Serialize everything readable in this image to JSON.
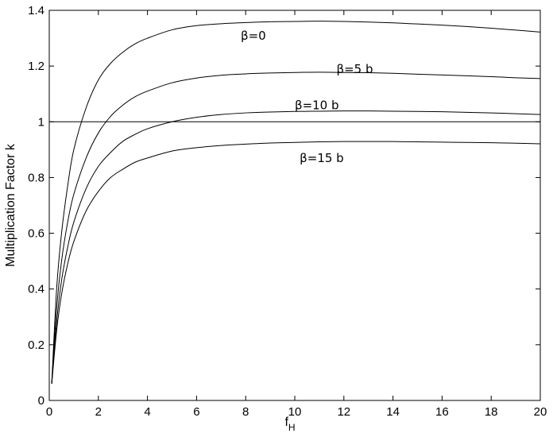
{
  "chart_data": {
    "type": "line",
    "title": "",
    "xlabel": "f",
    "xlabel_subscript": "H",
    "ylabel": "Multiplication Factor k",
    "xlim": [
      0,
      20
    ],
    "ylim": [
      0,
      1.4
    ],
    "xticks": [
      "0",
      "2",
      "4",
      "6",
      "8",
      "10",
      "12",
      "14",
      "16",
      "18",
      "20"
    ],
    "yticks": [
      "0",
      "0.2",
      "0.4",
      "0.6",
      "0.8",
      "1",
      "1.2",
      "1.4"
    ],
    "grid": false,
    "reference_line": {
      "y": 1
    },
    "x": [
      0.1,
      0.3,
      0.5,
      0.75,
      1,
      1.5,
      2,
      2.5,
      3,
      3.5,
      4,
      5,
      6,
      7,
      8,
      9,
      10,
      11,
      12,
      13,
      14,
      15,
      16,
      17,
      18,
      19,
      20
    ],
    "series": [
      {
        "name": "β=0",
        "values": [
          0.06,
          0.4,
          0.6,
          0.77,
          0.9,
          1.05,
          1.15,
          1.21,
          1.25,
          1.28,
          1.3,
          1.33,
          1.345,
          1.352,
          1.356,
          1.359,
          1.36,
          1.361,
          1.36,
          1.358,
          1.355,
          1.351,
          1.347,
          1.342,
          1.336,
          1.329,
          1.322
        ]
      },
      {
        "name": "β=5 b",
        "values": [
          0.06,
          0.33,
          0.5,
          0.64,
          0.74,
          0.87,
          0.96,
          1.02,
          1.06,
          1.09,
          1.11,
          1.14,
          1.157,
          1.167,
          1.172,
          1.175,
          1.177,
          1.178,
          1.177,
          1.176,
          1.174,
          1.171,
          1.168,
          1.165,
          1.162,
          1.158,
          1.155
        ]
      },
      {
        "name": "β=10 b",
        "values": [
          0.06,
          0.28,
          0.43,
          0.55,
          0.64,
          0.76,
          0.84,
          0.89,
          0.93,
          0.955,
          0.975,
          1.0,
          1.016,
          1.026,
          1.032,
          1.035,
          1.037,
          1.038,
          1.039,
          1.039,
          1.038,
          1.037,
          1.036,
          1.034,
          1.032,
          1.029,
          1.026
        ]
      },
      {
        "name": "β=15 b",
        "values": [
          0.06,
          0.25,
          0.38,
          0.49,
          0.57,
          0.68,
          0.75,
          0.8,
          0.83,
          0.855,
          0.87,
          0.895,
          0.907,
          0.915,
          0.92,
          0.924,
          0.926,
          0.928,
          0.929,
          0.929,
          0.929,
          0.928,
          0.927,
          0.926,
          0.925,
          0.923,
          0.921
        ]
      }
    ],
    "annotations": [
      {
        "text": "β=0",
        "x": 7.8,
        "y": 1.295
      },
      {
        "text": "β=5 b",
        "x": 11.7,
        "y": 1.175
      },
      {
        "text": "β=10 b",
        "x": 10.0,
        "y": 1.045
      },
      {
        "text": "β=15 b",
        "x": 10.2,
        "y": 0.855
      }
    ]
  }
}
